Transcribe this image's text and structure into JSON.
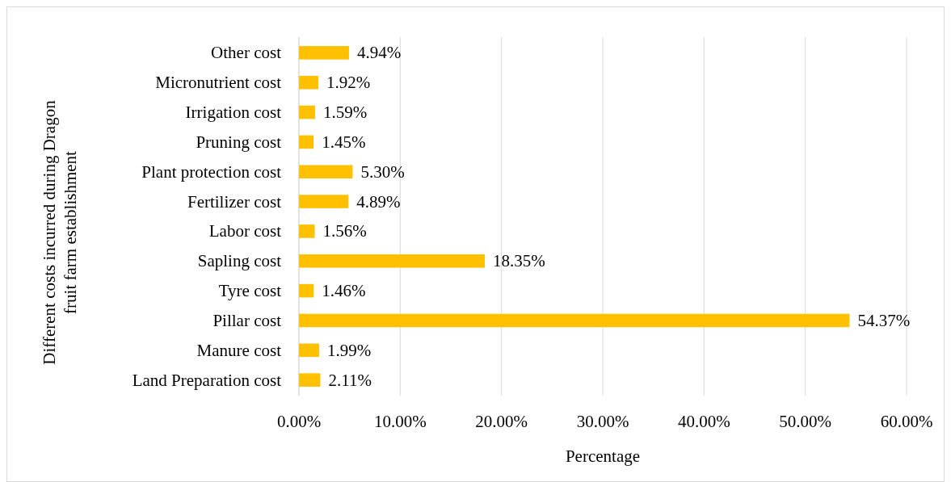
{
  "chart_data": {
    "type": "bar",
    "orientation": "horizontal",
    "xlabel": "Percentage",
    "ylabel": "Different costs incurred during Dragon fruit farm establishment",
    "categories": [
      "Other cost",
      "Micronutrient cost",
      "Irrigation cost",
      "Pruning cost",
      "Plant protection cost",
      "Fertilizer cost",
      "Labor cost",
      "Sapling cost",
      "Tyre cost",
      "Pillar cost",
      "Manure cost",
      "Land Preparation cost"
    ],
    "values": [
      4.94,
      1.92,
      1.59,
      1.45,
      5.3,
      4.89,
      1.56,
      18.35,
      1.46,
      54.37,
      1.99,
      2.11
    ],
    "value_labels": [
      "4.94%",
      "1.92%",
      "1.59%",
      "1.45%",
      "5.30%",
      "4.89%",
      "1.56%",
      "18.35%",
      "1.46%",
      "54.37%",
      "1.99%",
      "2.11%"
    ],
    "color": "#ffc000",
    "xlim": [
      0,
      60
    ],
    "xticks": [
      {
        "value": 0,
        "label": "0.00%"
      },
      {
        "value": 10,
        "label": "10.00%"
      },
      {
        "value": 20,
        "label": "20.00%"
      },
      {
        "value": 30,
        "label": "30.00%"
      },
      {
        "value": 40,
        "label": "40.00%"
      },
      {
        "value": 50,
        "label": "50.00%"
      },
      {
        "value": 60,
        "label": "60.00%"
      }
    ],
    "grid": "x"
  }
}
